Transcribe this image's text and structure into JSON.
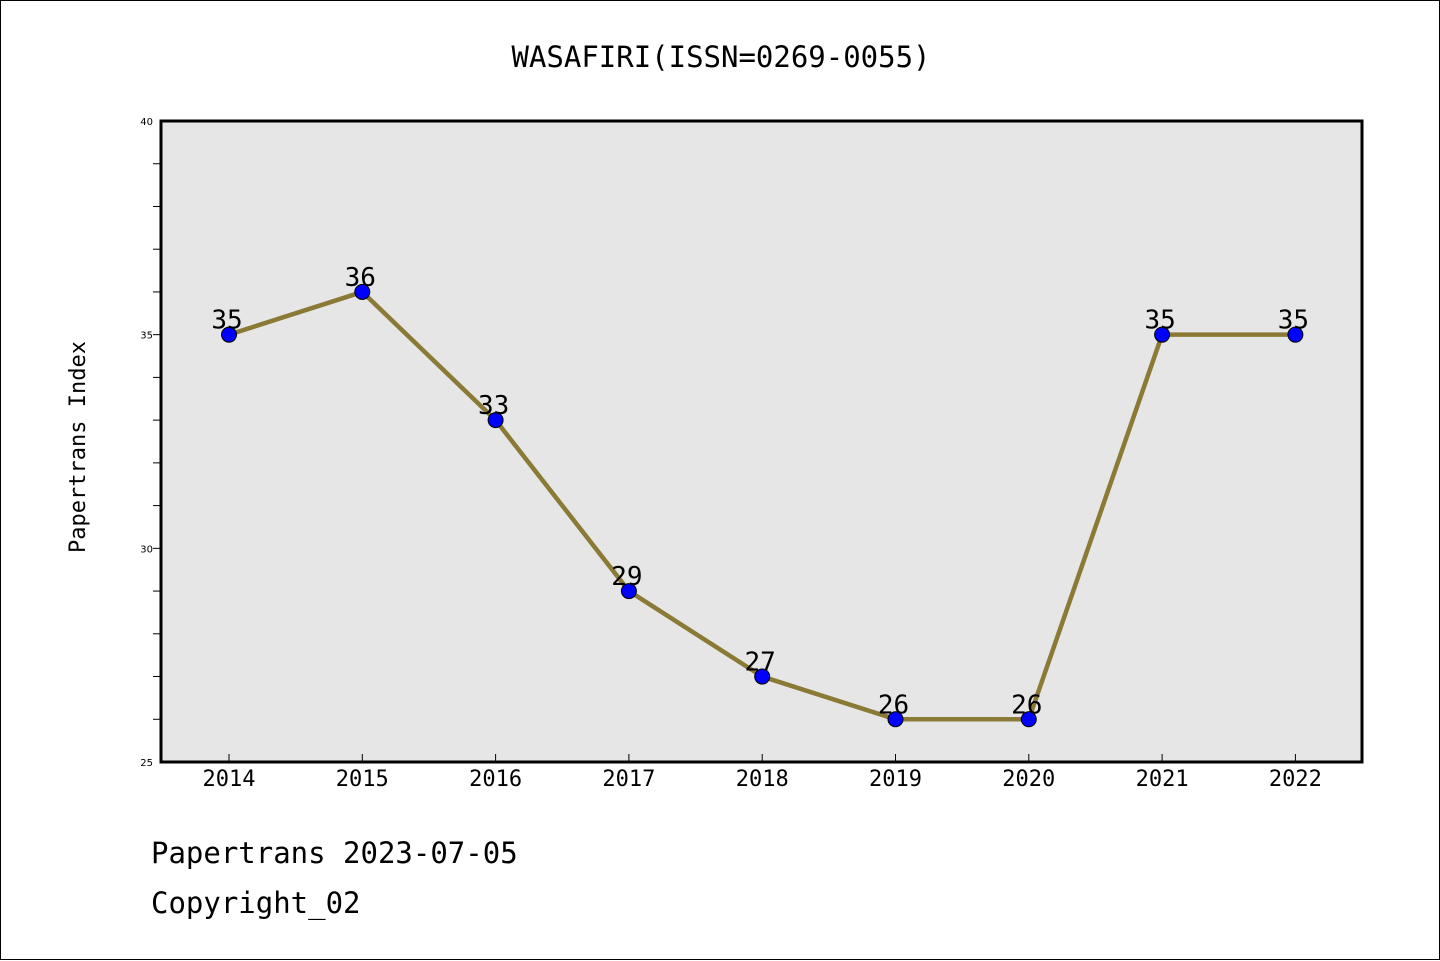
{
  "chart_data": {
    "type": "line",
    "title": "WASAFIRI(ISSN=0269-0055)",
    "xlabel": "",
    "ylabel": "Papertrans Index",
    "categories": [
      "2014",
      "2015",
      "2016",
      "2017",
      "2018",
      "2019",
      "2020",
      "2021",
      "2022"
    ],
    "series": [
      {
        "values": [
          35,
          36,
          33,
          29,
          27,
          26,
          26,
          35,
          35
        ]
      }
    ],
    "data_labels": [
      "35",
      "36",
      "33",
      "29",
      "27",
      "26",
      "26",
      "35",
      "35"
    ],
    "ylim": [
      25,
      40
    ],
    "yticks": [
      "25",
      "30",
      "35",
      "40"
    ],
    "grid": false,
    "legend": "none",
    "colors": {
      "line": "#8b7a35",
      "marker": "#0000ff",
      "plot_background": "#e6e6e6",
      "axes": "#000000"
    }
  },
  "footer": {
    "date_line": "Papertrans 2023-07-05",
    "copyright": "Copyright_02"
  }
}
